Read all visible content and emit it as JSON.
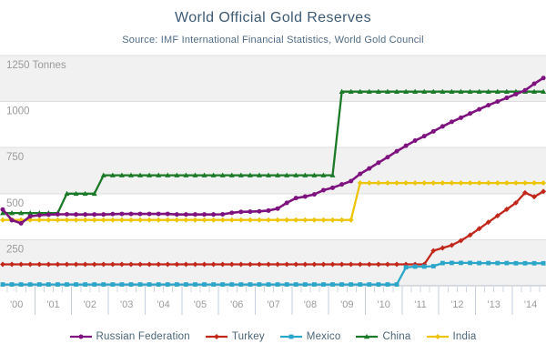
{
  "header": {
    "title": "World Official Gold Reserves",
    "subtitle": "Source: IMF International Financial Statistics, World Gold Council"
  },
  "chart_data": {
    "type": "line",
    "title": "World Official Gold Reserves",
    "subtitle": "Source: IMF International Financial Statistics, World Gold Council",
    "x_unit": "quarters",
    "x_range": "2000 Q1 - 2014 Q4",
    "categories": [
      "'00",
      "'01",
      "'02",
      "'03",
      "'04",
      "'05",
      "'06",
      "'07",
      "'08",
      "'09",
      "'10",
      "'11",
      "'12",
      "'13",
      "'14"
    ],
    "ylabel": "Tonnes",
    "ylim": [
      0,
      1250
    ],
    "yticks": [
      250,
      500,
      750,
      1000,
      1250
    ],
    "ytick_labels": [
      "250",
      "500",
      "750",
      "1000",
      "1250 Tonnes"
    ],
    "grid": "horizontal-bands",
    "legend_position": "bottom",
    "colors": {
      "band": "#f1f1f1",
      "gridline": "#dedede",
      "axis_line": "#b6c0ca",
      "minor_tick": "#cdd8e3",
      "major_tick": "#c3cfdd",
      "axis_text": "#9b9b9b",
      "title_text": "#3d5a74",
      "legend_text": "#4a6577"
    },
    "series": [
      {
        "name": "Russian Federation",
        "color": "#7e127e",
        "marker": "circle",
        "values": [
          414,
          356,
          339,
          377,
          383,
          386,
          388,
          388,
          387,
          387,
          387,
          387,
          389,
          390,
          390,
          390,
          390,
          390,
          390,
          387,
          387,
          387,
          387,
          387,
          388,
          396,
          401,
          402,
          404,
          408,
          419,
          450,
          476,
          484,
          496,
          519,
          532,
          550,
          568,
          607,
          637,
          668,
          698,
          730,
          760,
          788,
          812,
          838,
          865,
          890,
          912,
          935,
          958,
          980,
          1000,
          1020,
          1040,
          1061,
          1097,
          1128
        ]
      },
      {
        "name": "Turkey",
        "color": "#c1271b",
        "marker": "diamond",
        "values": [
          116,
          116,
          116,
          116,
          116,
          116,
          116,
          116,
          116,
          116,
          116,
          116,
          116,
          116,
          116,
          116,
          116,
          116,
          116,
          116,
          116,
          116,
          116,
          116,
          116,
          116,
          116,
          116,
          116,
          116,
          116,
          116,
          116,
          116,
          116,
          116,
          116,
          116,
          116,
          116,
          116,
          116,
          116,
          116,
          116,
          116,
          116,
          190,
          205,
          220,
          245,
          275,
          310,
          345,
          380,
          415,
          450,
          505,
          483,
          512
        ]
      },
      {
        "name": "Mexico",
        "color": "#2ba6c9",
        "marker": "square",
        "values": [
          7,
          7,
          7,
          7,
          7,
          7,
          7,
          7,
          7,
          7,
          7,
          7,
          7,
          7,
          7,
          7,
          7,
          7,
          7,
          7,
          7,
          7,
          7,
          7,
          7,
          7,
          7,
          7,
          7,
          7,
          7,
          7,
          7,
          7,
          7,
          7,
          7,
          7,
          7,
          7,
          7,
          7,
          7,
          7,
          100,
          104,
          104,
          106,
          123,
          124,
          124,
          124,
          123,
          123,
          123,
          123,
          122,
          122,
          122,
          122
        ]
      },
      {
        "name": "China",
        "color": "#1b7a28",
        "marker": "triangle",
        "values": [
          395,
          395,
          395,
          395,
          395,
          395,
          395,
          500,
          500,
          500,
          500,
          600,
          600,
          600,
          600,
          600,
          600,
          600,
          600,
          600,
          600,
          600,
          600,
          600,
          600,
          600,
          600,
          600,
          600,
          600,
          600,
          600,
          600,
          600,
          600,
          600,
          600,
          1054,
          1054,
          1054,
          1054,
          1054,
          1054,
          1054,
          1054,
          1054,
          1054,
          1054,
          1054,
          1054,
          1054,
          1054,
          1054,
          1054,
          1054,
          1054,
          1054,
          1054,
          1054,
          1054
        ]
      },
      {
        "name": "India",
        "color": "#ecc506",
        "marker": "diamond",
        "values": [
          357,
          357,
          357,
          357,
          357,
          357,
          357,
          357,
          357,
          357,
          357,
          357,
          357,
          357,
          357,
          357,
          357,
          357,
          357,
          357,
          357,
          357,
          357,
          357,
          357,
          357,
          357,
          357,
          357,
          357,
          357,
          357,
          357,
          357,
          357,
          357,
          357,
          357,
          357,
          558,
          558,
          558,
          558,
          558,
          558,
          558,
          558,
          558,
          558,
          558,
          558,
          558,
          558,
          558,
          558,
          558,
          558,
          558,
          558,
          558
        ]
      }
    ]
  }
}
